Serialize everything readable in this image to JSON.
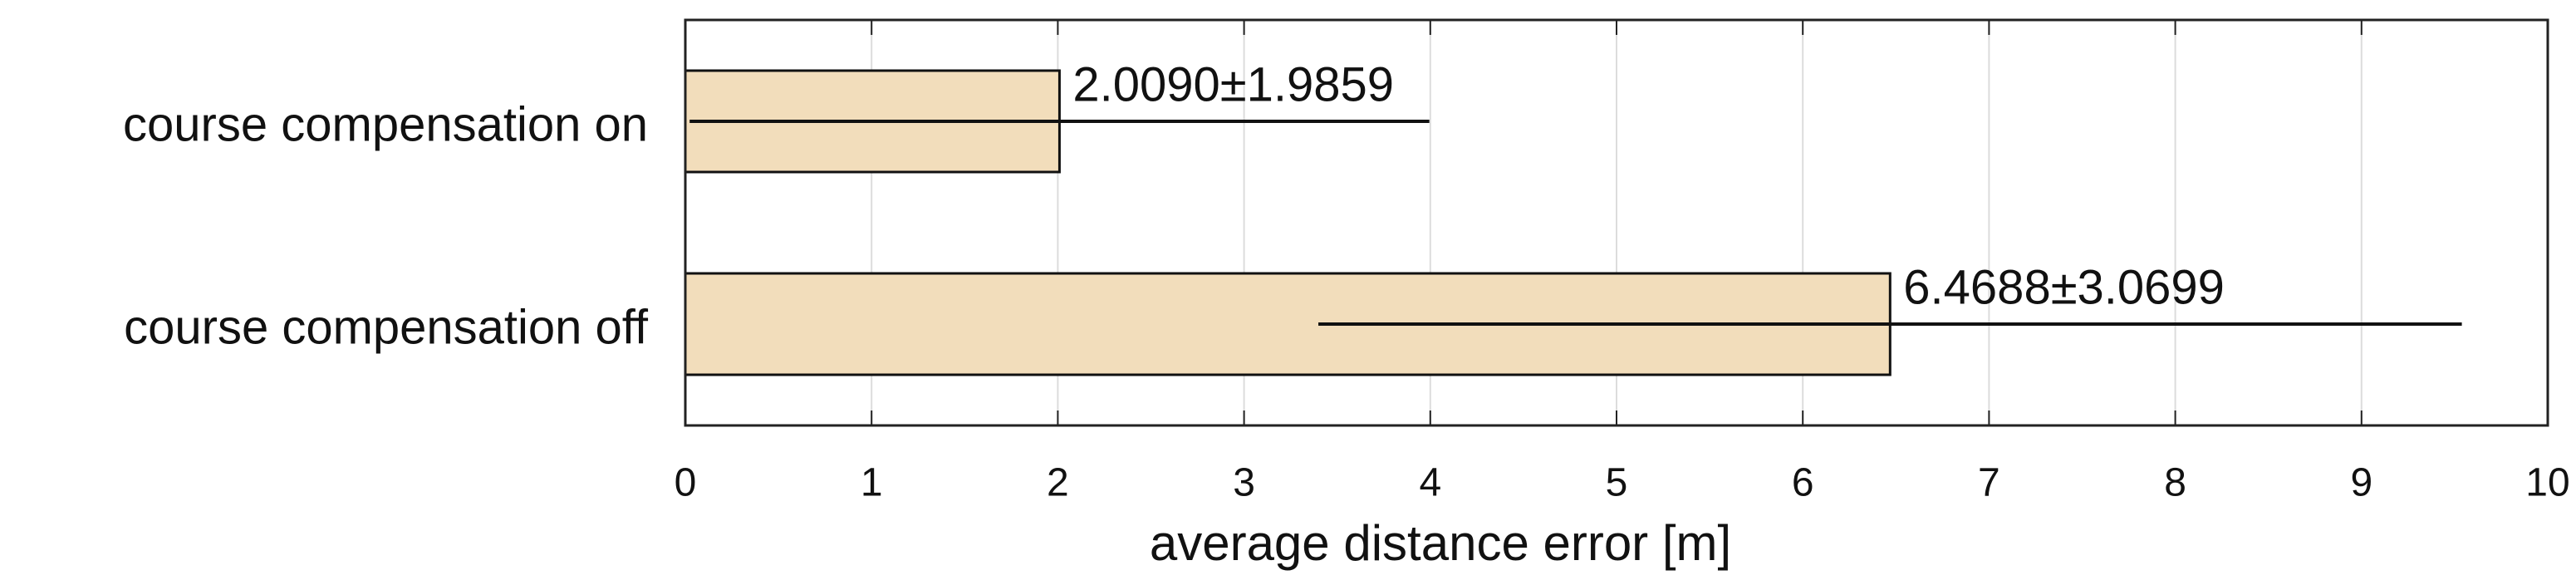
{
  "chart_data": {
    "type": "bar",
    "orientation": "horizontal",
    "categories": [
      "course compensation on",
      "course compensation off"
    ],
    "values": [
      2.009,
      6.4688
    ],
    "errors": [
      1.9859,
      3.0699
    ],
    "value_labels": [
      "2.0090±1.9859",
      "6.4688±3.0699"
    ],
    "color": "#f2ddbb",
    "xlabel": "average distance error [m]",
    "xlim": [
      0,
      10
    ],
    "xticks": [
      0,
      1,
      2,
      3,
      4,
      5,
      6,
      7,
      8,
      9,
      10
    ],
    "grid": true
  }
}
